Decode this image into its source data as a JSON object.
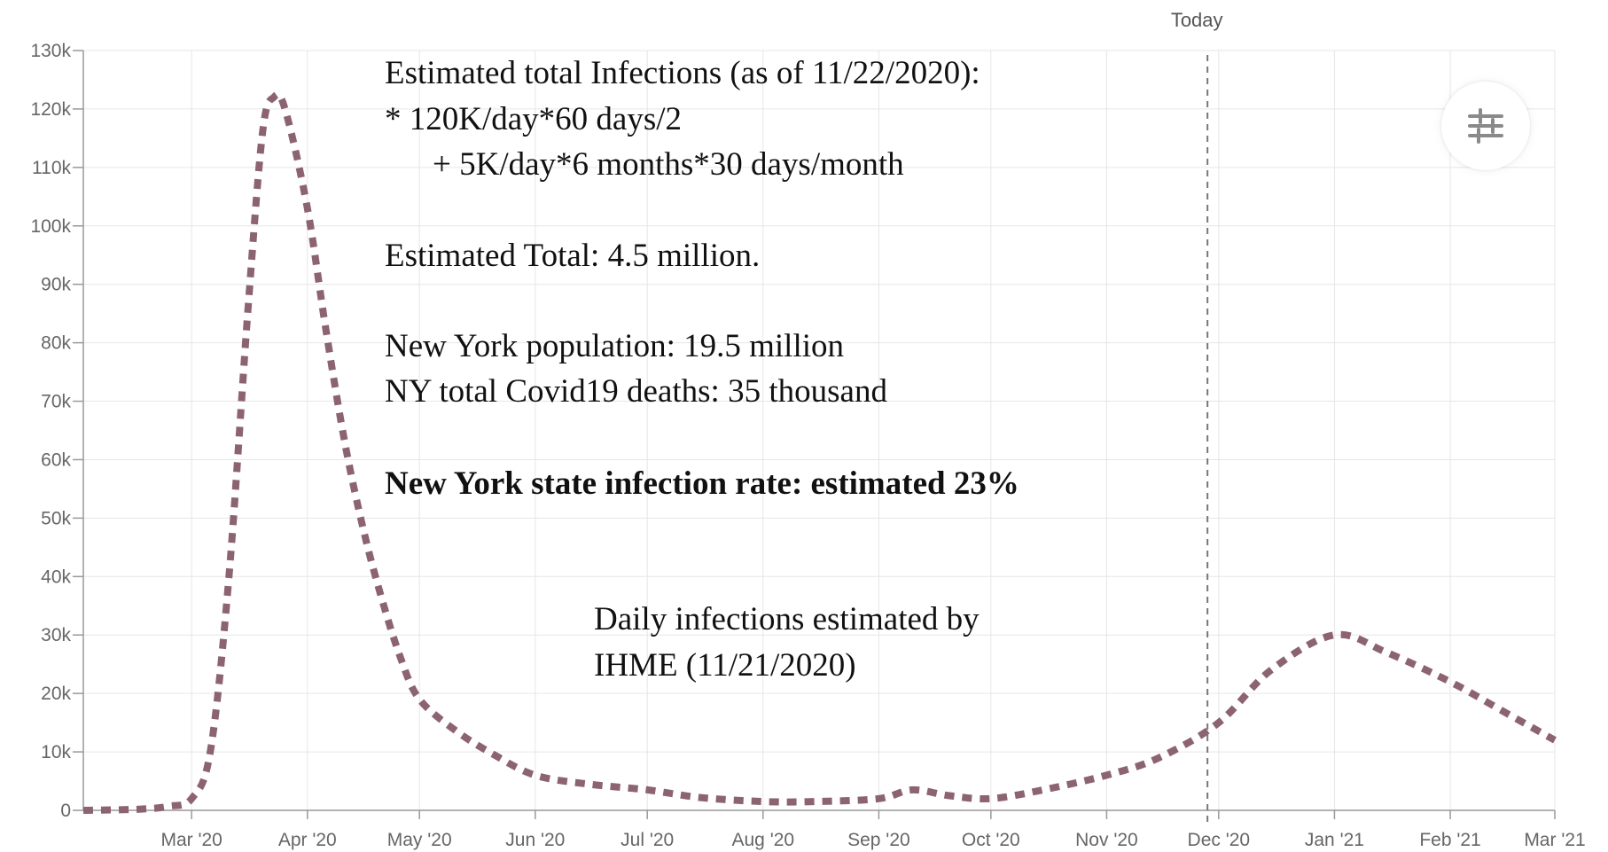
{
  "chart_data": {
    "type": "line",
    "x_ticks": [
      "Mar '20",
      "Apr '20",
      "May '20",
      "Jun '20",
      "Jul '20",
      "Aug '20",
      "Sep '20",
      "Oct '20",
      "Nov '20",
      "Dec '20",
      "Jan '21",
      "Feb '21",
      "Mar '21"
    ],
    "y_ticks": [
      "0",
      "10k",
      "20k",
      "30k",
      "40k",
      "50k",
      "60k",
      "70k",
      "80k",
      "90k",
      "100k",
      "110k",
      "120k",
      "130k"
    ],
    "ylim": [
      0,
      130000
    ],
    "xlim": [
      "2020-02-01",
      "2021-03-01"
    ],
    "grid": true,
    "series": [
      {
        "color": "#8c6470",
        "line_style": "dashed",
        "x": [
          "2020-02-01",
          "2020-02-16",
          "2020-02-24",
          "2020-03-01",
          "2020-03-06",
          "2020-03-11",
          "2020-03-16",
          "2020-03-20",
          "2020-03-23",
          "2020-03-26",
          "2020-04-01",
          "2020-04-06",
          "2020-04-11",
          "2020-04-16",
          "2020-04-21",
          "2020-04-26",
          "2020-05-01",
          "2020-05-11",
          "2020-05-21",
          "2020-06-01",
          "2020-06-15",
          "2020-07-01",
          "2020-07-15",
          "2020-08-01",
          "2020-08-15",
          "2020-09-01",
          "2020-09-10",
          "2020-09-20",
          "2020-10-01",
          "2020-10-15",
          "2020-11-01",
          "2020-11-15",
          "2020-12-01",
          "2020-12-15",
          "2021-01-01",
          "2021-01-15",
          "2021-02-01",
          "2021-02-15",
          "2021-03-01"
        ],
        "y": [
          0,
          200,
          700,
          2000,
          10000,
          40000,
          85000,
          116000,
          122000,
          120000,
          103000,
          82000,
          63000,
          48000,
          36000,
          26000,
          19000,
          13500,
          9500,
          6000,
          4500,
          3500,
          2200,
          1500,
          1500,
          2000,
          3500,
          2500,
          2000,
          3500,
          6000,
          9000,
          15000,
          24000,
          30000,
          27000,
          22000,
          17000,
          12000
        ]
      }
    ],
    "vline": {
      "x": "2020-11-28",
      "label": "Today"
    },
    "annotations": [
      "Estimated total Infections (as of 11/22/2020):",
      "*  120K/day*60 days/2",
      "+ 5K/day*6 months*30 days/month",
      "Estimated Total: 4.5 million.",
      "New York population: 19.5 million",
      "NY total Covid19 deaths: 35 thousand",
      "New York state infection rate: estimated 23%",
      "Daily infections estimated by",
      "IHME (11/21/2020)"
    ]
  },
  "controls": {
    "settings_icon": "sliders-icon"
  }
}
